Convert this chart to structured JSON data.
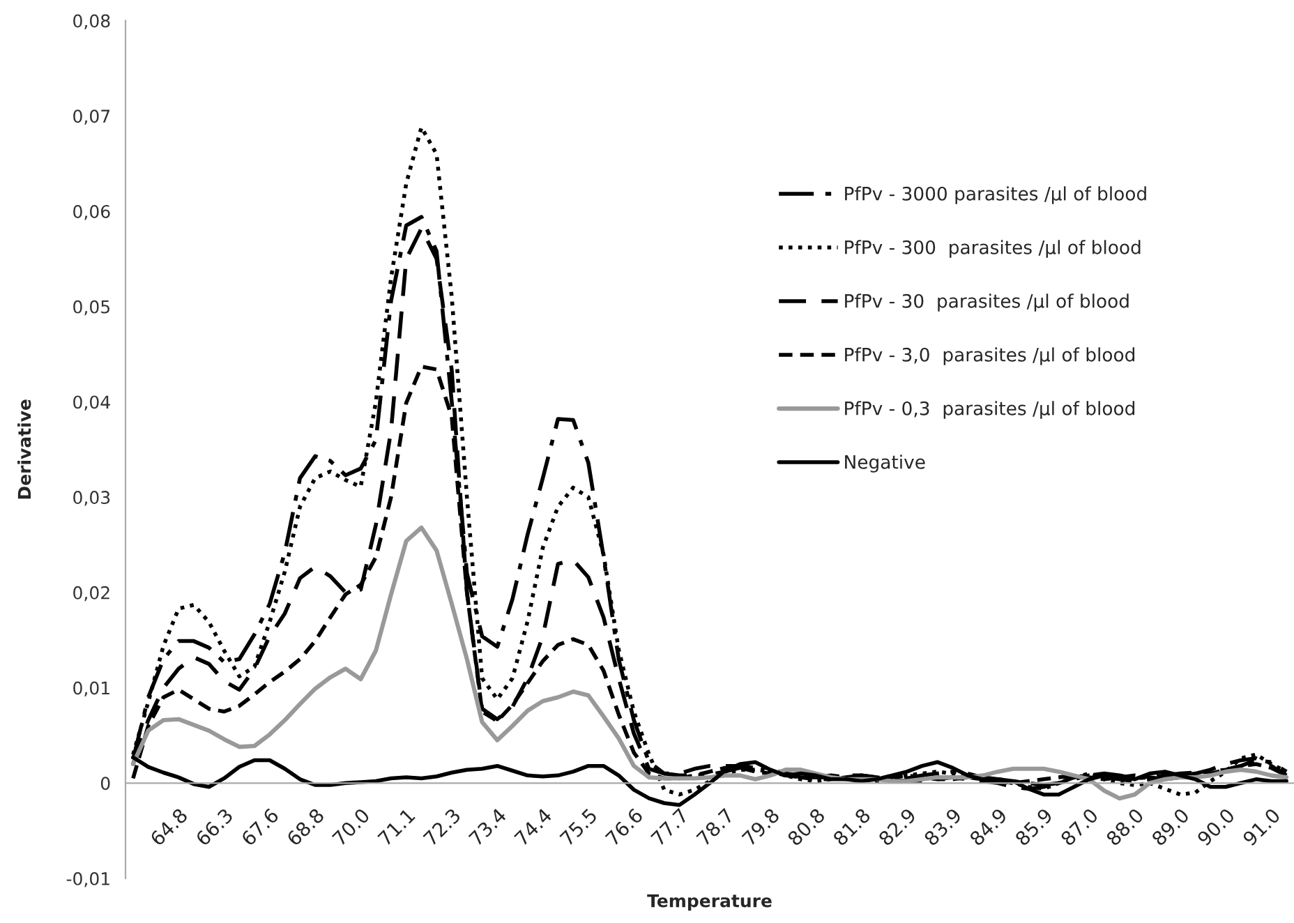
{
  "chart_data": {
    "type": "line",
    "xlabel": "Temperature",
    "ylabel": "Derivative",
    "categories": [
      null,
      null,
      null,
      "64.8",
      null,
      null,
      "66.3",
      null,
      null,
      "67.6",
      null,
      null,
      "68.8",
      null,
      null,
      "70.0",
      null,
      null,
      "71.1",
      null,
      null,
      "72.3",
      null,
      null,
      "73.4",
      null,
      null,
      "74.4",
      null,
      null,
      "75.5",
      null,
      null,
      "76.6",
      null,
      null,
      "77.7",
      null,
      null,
      "78.7",
      null,
      null,
      "79.8",
      null,
      null,
      "80.8",
      null,
      null,
      "81.8",
      null,
      null,
      "82.9",
      null,
      null,
      "83.9",
      null,
      null,
      "84.9",
      null,
      null,
      "85.9",
      null,
      null,
      "87.0",
      null,
      null,
      "88.0",
      null,
      null,
      "89.0",
      null,
      null,
      "90.0",
      null,
      null,
      "91.0",
      null
    ],
    "ylim": [
      -0.01,
      0.08
    ],
    "yticks": [
      {
        "value": -0.01,
        "label": "-0,01"
      },
      0,
      {
        "value": 0.01,
        "label": "0,01"
      },
      {
        "value": 0.02,
        "label": "0,02"
      },
      {
        "value": 0.03,
        "label": "0,03"
      },
      {
        "value": 0.04,
        "label": "0,04"
      },
      {
        "value": 0.05,
        "label": "0,05"
      },
      {
        "value": 0.06,
        "label": "0,06"
      },
      {
        "value": 0.07,
        "label": "0,07"
      },
      {
        "value": 0.08,
        "label": "0,08"
      }
    ],
    "grid": false,
    "legend": "right",
    "marker": "none",
    "series": [
      {
        "name": "PfPv - 3000 parasites /µl of blood",
        "color": "#000000",
        "line_style": "dashdot",
        "values": [
          0.0025,
          0.009,
          0.013,
          0.0149,
          0.0149,
          0.0142,
          0.0127,
          0.013,
          0.0156,
          0.0188,
          0.0242,
          0.032,
          0.0343,
          0.0338,
          0.0323,
          0.033,
          0.036,
          0.0506,
          0.0585,
          0.0594,
          0.0558,
          0.04,
          0.022,
          0.0154,
          0.0143,
          0.0193,
          0.0261,
          0.032,
          0.0382,
          0.0381,
          0.0336,
          0.0238,
          0.013,
          0.0066,
          0.0022,
          0.001,
          0.0008,
          0.0008,
          0.0009,
          0.0012,
          0.0016,
          0.0018,
          0.0015,
          0.001,
          0.0006,
          0.0004,
          0.0004,
          0.0006,
          0.0008,
          0.0006,
          0.0004,
          0.0005,
          0.0008,
          0.001,
          0.0012,
          0.001,
          0.0006,
          0.0004,
          0.0002,
          0,
          -0.0002,
          0,
          0.0004,
          0.0008,
          0.001,
          0.0008,
          0.0005,
          0.0006,
          0.0008,
          0.001,
          0.0011,
          0.0012,
          0.0014,
          0.0018,
          0.0024,
          0.0022,
          0.0012
        ]
      },
      {
        "name": "PfPv - 300  parasites /µl of blood",
        "color": "#000000",
        "line_style": "dotted",
        "values": [
          0.003,
          0.0085,
          0.0144,
          0.0183,
          0.0187,
          0.0169,
          0.0139,
          0.0112,
          0.0122,
          0.0169,
          0.0222,
          0.029,
          0.032,
          0.0327,
          0.0318,
          0.0311,
          0.04,
          0.053,
          0.0629,
          0.0688,
          0.066,
          0.051,
          0.03,
          0.011,
          0.0088,
          0.011,
          0.017,
          0.0247,
          0.029,
          0.031,
          0.03,
          0.024,
          0.014,
          0.0075,
          0.003,
          -0.0007,
          -0.0012,
          -0.0007,
          0.0002,
          0.001,
          0.0014,
          0.0014,
          0.0012,
          0.0008,
          0.0004,
          0.0002,
          0.0004,
          0.0006,
          0.0004,
          0.0002,
          0.0004,
          0.0008,
          0.001,
          0.0012,
          0.001,
          0.0006,
          0.0004,
          0.0002,
          0,
          -0.0004,
          -0.0006,
          0,
          0.0006,
          0.001,
          0.0004,
          0,
          -0.0002,
          0,
          -0.0006,
          -0.0012,
          -0.001,
          0.0002,
          0.0012,
          0.0026,
          0.003,
          0.002,
          0.0012
        ]
      },
      {
        "name": "PfPv - 30  parasites /µl of blood",
        "color": "#000000",
        "line_style": "dashed",
        "values": [
          0.002,
          0.0066,
          0.01,
          0.012,
          0.0132,
          0.0125,
          0.0107,
          0.0098,
          0.012,
          0.0154,
          0.0178,
          0.0215,
          0.0227,
          0.0217,
          0.02,
          0.0203,
          0.0271,
          0.037,
          0.055,
          0.0582,
          0.055,
          0.0433,
          0.02,
          0.0078,
          0.0067,
          0.008,
          0.011,
          0.0154,
          0.023,
          0.0234,
          0.0216,
          0.0174,
          0.011,
          0.0052,
          0.0015,
          0.001,
          0.001,
          0.0015,
          0.0018,
          0.0018,
          0.0018,
          0.0016,
          0.0012,
          0.001,
          0.0008,
          0.0006,
          0.0006,
          0.0008,
          0.0008,
          0.0006,
          0.0004,
          0.0002,
          0.0002,
          0.0004,
          0.0006,
          0.0004,
          0.0002,
          0,
          -0.0004,
          -0.0006,
          -0.0004,
          0,
          0.0006,
          0.0008,
          0.0006,
          0.0004,
          0.0002,
          0.0004,
          0.0006,
          0.0008,
          0.001,
          0.0014,
          0.002,
          0.0024,
          0.0026,
          0.0018,
          0.0008
        ]
      },
      {
        "name": "PfPv - 3,0  parasites /µl of blood",
        "color": "#000000",
        "line_style": "shortdash",
        "values": [
          0.0005,
          0.006,
          0.009,
          0.0098,
          0.0088,
          0.0078,
          0.0075,
          0.0081,
          0.0093,
          0.0106,
          0.0117,
          0.013,
          0.0149,
          0.0174,
          0.0198,
          0.0208,
          0.0237,
          0.03,
          0.0399,
          0.0437,
          0.0434,
          0.0384,
          0.02,
          0.0075,
          0.0065,
          0.0082,
          0.0105,
          0.0128,
          0.0145,
          0.0151,
          0.0145,
          0.0118,
          0.0072,
          0.0032,
          0.001,
          0.0005,
          0.0005,
          0.0008,
          0.0012,
          0.0016,
          0.0016,
          0.0012,
          0.001,
          0.0008,
          0.0006,
          0.0006,
          0.0008,
          0.0006,
          0.0004,
          0.0004,
          0.0006,
          0.0008,
          0.0006,
          0.0004,
          0.0004,
          0.0006,
          0.0004,
          0.0002,
          0,
          0.0002,
          0.0004,
          0.0006,
          0.0008,
          0.0006,
          0.0004,
          0.0006,
          0.0008,
          0.0006,
          0.0004,
          0.0006,
          0.0008,
          0.001,
          0.0014,
          0.0018,
          0.002,
          0.0016,
          0.0008
        ]
      },
      {
        "name": "PfPv - 0,3  parasites /µl of blood",
        "color": "#999999",
        "line_style": "solid",
        "values": [
          0.002,
          0.0055,
          0.0066,
          0.0067,
          0.0061,
          0.0055,
          0.0046,
          0.0038,
          0.0039,
          0.0051,
          0.0066,
          0.0083,
          0.0099,
          0.0111,
          0.012,
          0.0109,
          0.0139,
          0.0198,
          0.0254,
          0.0268,
          0.0244,
          0.0188,
          0.013,
          0.0064,
          0.0045,
          0.006,
          0.0076,
          0.0086,
          0.009,
          0.0096,
          0.0092,
          0.007,
          0.0047,
          0.0018,
          0.0006,
          0.0005,
          0.0005,
          0.0005,
          0.0006,
          0.0008,
          0.0008,
          0.0004,
          0.0008,
          0.0014,
          0.0014,
          0.001,
          0.0006,
          0.0004,
          0.0004,
          0.0004,
          0.0002,
          0.0002,
          0.0004,
          0.0006,
          0.0006,
          0.0006,
          0.0008,
          0.0012,
          0.0015,
          0.0015,
          0.0015,
          0.0012,
          0.0008,
          0.0004,
          -0.0008,
          -0.0016,
          -0.0012,
          0,
          0.0004,
          0.0006,
          0.0006,
          0.0008,
          0.0012,
          0.0014,
          0.0012,
          0.0008,
          0.0006
        ]
      },
      {
        "name": "Negative",
        "color": "#000000",
        "line_style": "solid",
        "values": [
          0.0027,
          0.0017,
          0.0011,
          0.0006,
          -0.0001,
          -0.0004,
          0.0005,
          0.0017,
          0.0024,
          0.0024,
          0.0015,
          0.0004,
          -0.0002,
          -0.0002,
          0,
          0.0001,
          0.0002,
          0.0005,
          0.0006,
          0.0005,
          0.0007,
          0.0011,
          0.0014,
          0.0015,
          0.0018,
          0.0013,
          0.0008,
          0.0007,
          0.0008,
          0.0012,
          0.0018,
          0.0018,
          0.0008,
          -0.0007,
          -0.0016,
          -0.0021,
          -0.0023,
          -0.0012,
          0,
          0.0013,
          0.002,
          0.0022,
          0.0014,
          0.0008,
          0.001,
          0.0008,
          0.0004,
          0.0004,
          0.0002,
          0.0004,
          0.0008,
          0.0012,
          0.0018,
          0.0022,
          0.0016,
          0.0008,
          0.0004,
          0.0004,
          0.0002,
          -0.0006,
          -0.0012,
          -0.0012,
          -0.0004,
          0.0004,
          0.0008,
          0.0006,
          0.0004,
          0.001,
          0.0012,
          0.0008,
          0.0004,
          -0.0004,
          -0.0004,
          0,
          0.0004,
          0.0002,
          0.0002
        ]
      }
    ]
  }
}
